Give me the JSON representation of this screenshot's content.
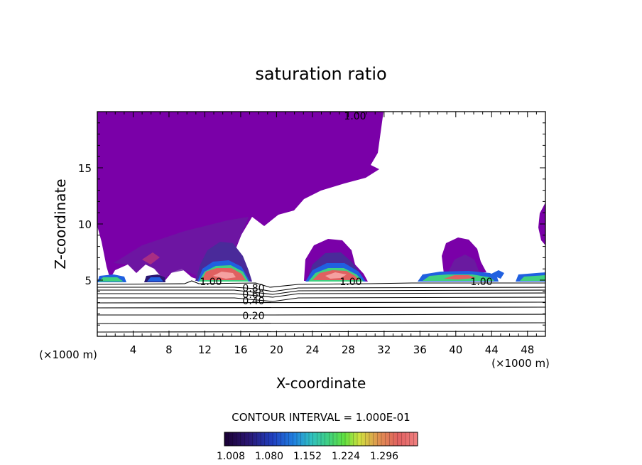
{
  "chart_data": {
    "type": "contour",
    "title": "saturation ratio",
    "xlabel": "X-coordinate",
    "ylabel": "Z-coordinate",
    "x_unit": "(×1000 m)",
    "y_unit": "(×1000 m)",
    "xlim": [
      0,
      50
    ],
    "ylim": [
      0,
      20
    ],
    "x_ticks": [
      4,
      8,
      12,
      16,
      20,
      24,
      28,
      32,
      36,
      40,
      44,
      48
    ],
    "y_ticks": [
      5,
      10,
      15
    ],
    "contour_interval_text": "CONTOUR INTERVAL = 1.000E-01",
    "contour_labels": [
      {
        "text": "1.00",
        "x": 36,
        "z": 19.6
      },
      {
        "text": "1.00",
        "x": 12.8,
        "z": 4.9
      },
      {
        "text": "1.00",
        "x": 28.2,
        "z": 4.9
      },
      {
        "text": "1.00",
        "x": 43.2,
        "z": 4.9
      },
      {
        "text": "0.80",
        "x": 17.3,
        "z": 4.1
      },
      {
        "text": "0.60",
        "x": 17.3,
        "z": 3.8
      },
      {
        "text": "0.40",
        "x": 17.3,
        "z": 3.0
      },
      {
        "text": "0.20",
        "x": 17.3,
        "z": 1.8
      }
    ],
    "colorbar": {
      "labels": [
        "1.008",
        "1.080",
        "1.152",
        "1.224",
        "1.296"
      ],
      "colors": [
        "#1a0033",
        "#2a1570",
        "#2040c0",
        "#2080e0",
        "#30c0c0",
        "#40d080",
        "#60e040",
        "#d0e040",
        "#e09050",
        "#e06060",
        "#f08080"
      ]
    },
    "grid": false
  }
}
